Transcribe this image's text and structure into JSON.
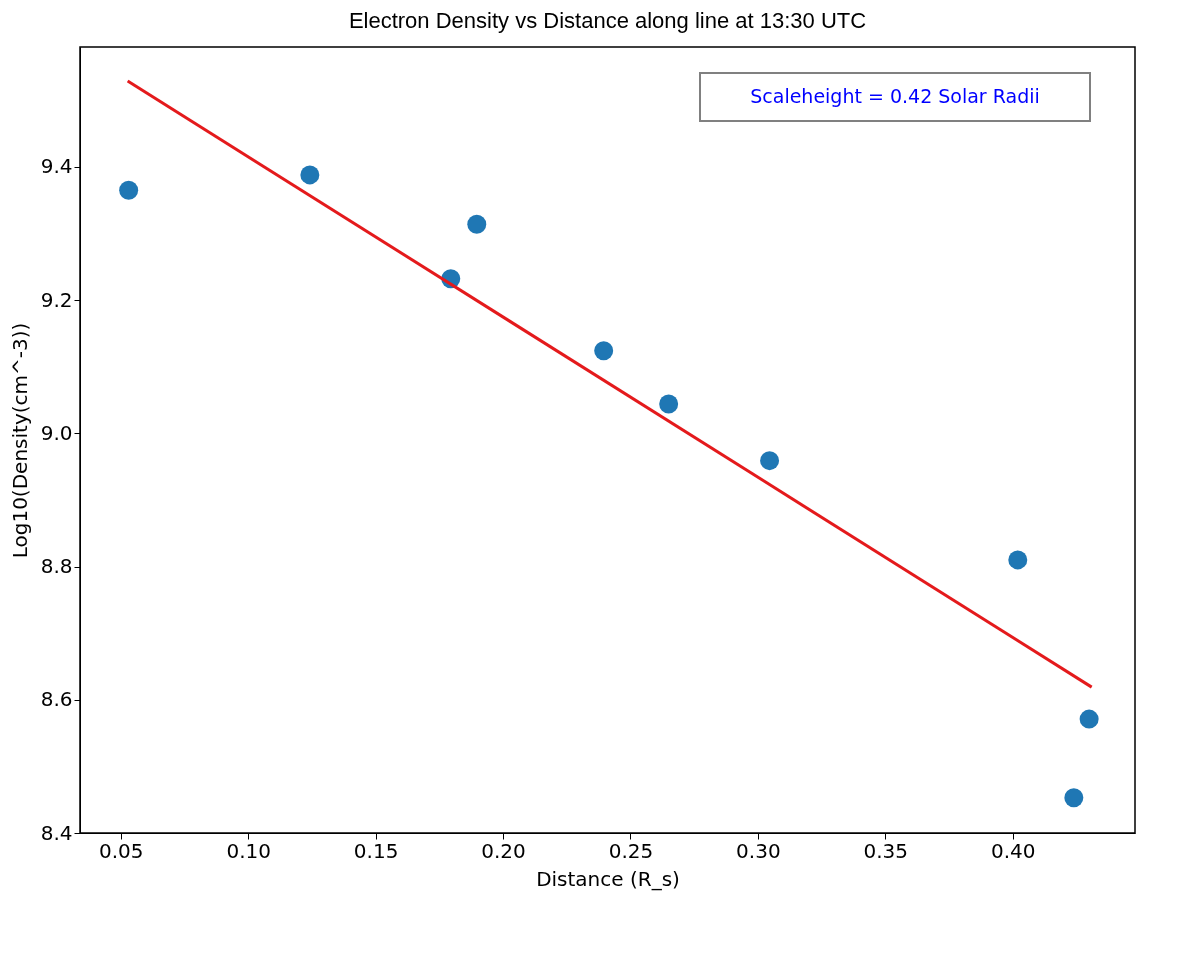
{
  "chart_data": {
    "type": "scatter",
    "title": "Electron Density vs Distance along line at 13:30 UTC",
    "xlabel": "Distance (R_s)",
    "ylabel": "Log10(Density(cm^-3))",
    "x": [
      0.0531,
      0.1242,
      0.1795,
      0.1897,
      0.2395,
      0.265,
      0.3046,
      0.402,
      0.424,
      0.43
    ],
    "series": [
      {
        "color": "#1f77b4",
        "values": [
          9.365,
          9.388,
          9.232,
          9.314,
          9.124,
          9.044,
          8.959,
          8.81,
          8.453,
          8.571
        ]
      },
      {
        "type": "line",
        "marker": "none",
        "color": "#e41a1c",
        "x": [
          0.0527,
          0.431
        ],
        "values": [
          9.529,
          8.619
        ]
      }
    ],
    "xlim": [
      0.034,
      0.448
    ],
    "ylim": [
      8.4,
      9.58
    ],
    "xticks": [
      0.05,
      {
        "value": 0.1,
        "label": "0.10"
      },
      0.15,
      {
        "value": 0.2,
        "label": "0.20"
      },
      0.25,
      {
        "value": 0.3,
        "label": "0.30"
      },
      0.35,
      {
        "value": 0.4,
        "label": "0.40"
      }
    ],
    "yticks": [
      8.4,
      8.6,
      8.8,
      {
        "value": 9,
        "label": "9.0"
      },
      9.2,
      9.4
    ],
    "annotations": [
      "Scaleheight = 0.42 Solar Radii"
    ],
    "grid": false,
    "marker": "circle"
  }
}
